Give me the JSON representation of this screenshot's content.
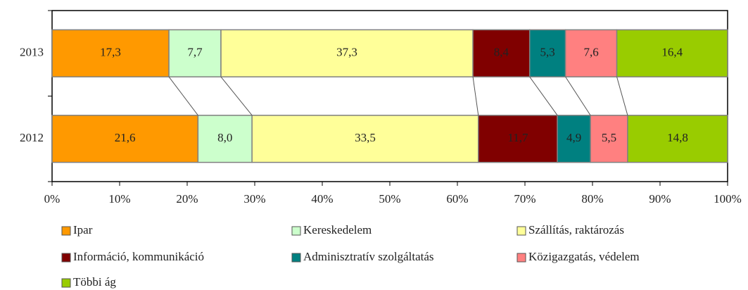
{
  "chart_data": {
    "type": "stacked-bar-horizontal",
    "categories": [
      "2013",
      "2012"
    ],
    "series": [
      {
        "name": "Ipar",
        "color": "#ff9900",
        "values": [
          17.3,
          21.6
        ],
        "value_labels": [
          "17,3",
          "21,6"
        ]
      },
      {
        "name": "Kereskedelem",
        "color": "#ccffcc",
        "values": [
          7.7,
          8.0
        ],
        "value_labels": [
          "7,7",
          "8,0"
        ]
      },
      {
        "name": "Szállítás, raktározás",
        "color": "#ffff99",
        "values": [
          37.3,
          33.5
        ],
        "value_labels": [
          "37,3",
          "33,5"
        ]
      },
      {
        "name": "Információ, kommunikáció",
        "color": "#800000",
        "values": [
          8.4,
          11.7
        ],
        "value_labels": [
          "8,4",
          "11,7"
        ]
      },
      {
        "name": "Adminisztratív szolgáltatás",
        "color": "#008080",
        "values": [
          5.3,
          4.9
        ],
        "value_labels": [
          "5,3",
          "4,9"
        ]
      },
      {
        "name": "Közigazgatás, védelem",
        "color": "#ff8080",
        "values": [
          7.6,
          5.5
        ],
        "value_labels": [
          "7,6",
          "5,5"
        ]
      },
      {
        "name": "Többi ág",
        "color": "#99cc00",
        "values": [
          16.4,
          14.8
        ],
        "value_labels": [
          "16,4",
          "14,8"
        ]
      }
    ],
    "xlim": [
      0,
      100
    ],
    "xticks": [
      {
        "value": 0,
        "label": "0%"
      },
      {
        "value": 10,
        "label": "10%"
      },
      {
        "value": 20,
        "label": "20%"
      },
      {
        "value": 30,
        "label": "30%"
      },
      {
        "value": 40,
        "label": "40%"
      },
      {
        "value": 50,
        "label": "50%"
      },
      {
        "value": 60,
        "label": "60%"
      },
      {
        "value": 70,
        "label": "70%"
      },
      {
        "value": 80,
        "label": "80%"
      },
      {
        "value": 90,
        "label": "90%"
      },
      {
        "value": 100,
        "label": "100%"
      }
    ],
    "legend": "bottom"
  }
}
